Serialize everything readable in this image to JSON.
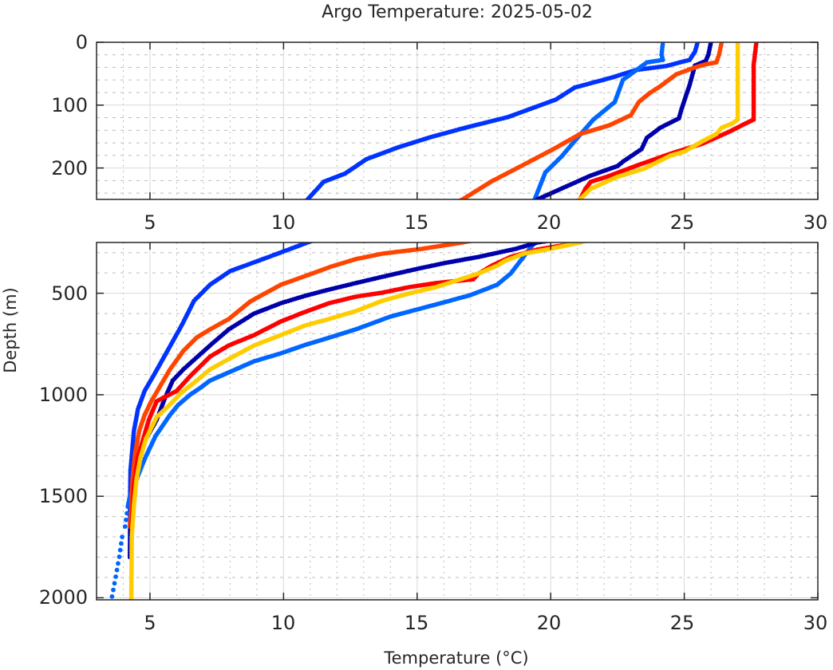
{
  "chart_data": {
    "type": "scatter",
    "title": "Argo Temperature: 2025-05-02",
    "xlabel": "Temperature (°C)",
    "ylabel": "Depth (m)",
    "grid": true,
    "minor_grid": true,
    "y_reversed": true,
    "panels": [
      {
        "name": "upper",
        "xlim": [
          3,
          30
        ],
        "ylim": [
          0,
          250
        ],
        "xticks": [
          5,
          10,
          15,
          20,
          25,
          30
        ],
        "xtick_labels": [
          "5",
          "10",
          "15",
          "20",
          "25",
          "30"
        ],
        "yticks": [
          0,
          100,
          200
        ],
        "ytick_labels": [
          "0",
          "100",
          "200"
        ]
      },
      {
        "name": "lower",
        "xlim": [
          3,
          30
        ],
        "ylim": [
          250,
          2010
        ],
        "xticks": [
          5,
          10,
          15,
          20,
          25,
          30
        ],
        "xtick_labels": [
          "5",
          "10",
          "15",
          "20",
          "25",
          "30"
        ],
        "yticks": [
          500,
          1000,
          1500,
          2000
        ],
        "ytick_labels": [
          "500",
          "1000",
          "1500",
          "2000"
        ]
      }
    ],
    "series": [
      {
        "name": "profile-blue",
        "color": "#0033ff",
        "points": [
          [
            25.5,
            0
          ],
          [
            25.4,
            15
          ],
          [
            25.2,
            28
          ],
          [
            24.3,
            38
          ],
          [
            23.2,
            44
          ],
          [
            22.3,
            56
          ],
          [
            20.9,
            72
          ],
          [
            20.2,
            91
          ],
          [
            18.4,
            119
          ],
          [
            16.8,
            136
          ],
          [
            15.5,
            151
          ],
          [
            14.3,
            167
          ],
          [
            13.1,
            186
          ],
          [
            12.3,
            209
          ],
          [
            11.5,
            222
          ],
          [
            10.9,
            250
          ],
          [
            9.45,
            321
          ],
          [
            8.0,
            391
          ],
          [
            7.25,
            458
          ],
          [
            6.65,
            537
          ],
          [
            6.2,
            655
          ],
          [
            5.7,
            773
          ],
          [
            5.15,
            902
          ],
          [
            4.8,
            981
          ],
          [
            4.55,
            1071
          ],
          [
            4.4,
            1177
          ],
          [
            4.27,
            1374
          ],
          [
            4.25,
            1550
          ],
          [
            4.25,
            1800
          ]
        ]
      },
      {
        "name": "profile-light-blue",
        "color": "#0066ff",
        "points": [
          [
            24.2,
            0
          ],
          [
            24.15,
            20
          ],
          [
            24.2,
            28
          ],
          [
            23.6,
            32
          ],
          [
            22.7,
            60
          ],
          [
            22.4,
            95
          ],
          [
            21.6,
            123
          ],
          [
            21.0,
            152
          ],
          [
            20.4,
            182
          ],
          [
            19.8,
            207
          ],
          [
            19.4,
            250
          ],
          [
            18.8,
            352
          ],
          [
            18.5,
            403
          ],
          [
            18.0,
            458
          ],
          [
            17.0,
            509
          ],
          [
            16.0,
            545
          ],
          [
            15.0,
            580
          ],
          [
            14.0,
            615
          ],
          [
            12.7,
            678
          ],
          [
            11.8,
            715
          ],
          [
            10.8,
            755
          ],
          [
            9.9,
            796
          ],
          [
            8.9,
            835
          ],
          [
            7.95,
            890
          ],
          [
            7.25,
            930
          ],
          [
            6.85,
            969
          ],
          [
            6.5,
            1000
          ],
          [
            6.05,
            1051
          ],
          [
            5.75,
            1099
          ],
          [
            5.2,
            1205
          ],
          [
            4.85,
            1303
          ],
          [
            4.7,
            1350
          ],
          [
            4.25,
            1499
          ],
          [
            4.17,
            1551
          ],
          [
            4.07,
            1649
          ],
          [
            3.96,
            1700
          ],
          [
            3.85,
            1798
          ],
          [
            3.72,
            1896
          ],
          [
            3.58,
            1994
          ]
        ]
      },
      {
        "name": "profile-navy",
        "color": "#0000aa",
        "points": [
          [
            26.0,
            0
          ],
          [
            25.9,
            20
          ],
          [
            25.8,
            30
          ],
          [
            25.4,
            37
          ],
          [
            25.2,
            68
          ],
          [
            24.9,
            106
          ],
          [
            24.8,
            121
          ],
          [
            24.1,
            136
          ],
          [
            23.6,
            152
          ],
          [
            23.4,
            170
          ],
          [
            22.7,
            190
          ],
          [
            22.5,
            197
          ],
          [
            21.5,
            212
          ],
          [
            20.5,
            231
          ],
          [
            19.5,
            250
          ],
          [
            18.7,
            281
          ],
          [
            17.3,
            321
          ],
          [
            16.0,
            352
          ],
          [
            15.0,
            380
          ],
          [
            13.7,
            419
          ],
          [
            12.7,
            450
          ],
          [
            11.7,
            482
          ],
          [
            10.8,
            513
          ],
          [
            9.9,
            549
          ],
          [
            8.9,
            600
          ],
          [
            7.95,
            678
          ],
          [
            7.25,
            757
          ],
          [
            6.25,
            875
          ],
          [
            5.85,
            930
          ],
          [
            5.55,
            1020
          ],
          [
            5.25,
            1124
          ],
          [
            4.85,
            1217
          ],
          [
            4.65,
            1283
          ],
          [
            4.45,
            1374
          ],
          [
            4.35,
            1464
          ],
          [
            4.28,
            1600
          ],
          [
            4.25,
            1800
          ]
        ]
      },
      {
        "name": "profile-orange",
        "color": "#ff4400",
        "points": [
          [
            26.4,
            0
          ],
          [
            26.3,
            20
          ],
          [
            26.2,
            32
          ],
          [
            25.8,
            35
          ],
          [
            25.4,
            40
          ],
          [
            24.7,
            51
          ],
          [
            24.1,
            70
          ],
          [
            23.7,
            81
          ],
          [
            23.3,
            95
          ],
          [
            23.0,
            116
          ],
          [
            22.2,
            132
          ],
          [
            21.1,
            146
          ],
          [
            20.1,
            170
          ],
          [
            18.8,
            199
          ],
          [
            17.8,
            221
          ],
          [
            16.7,
            250
          ],
          [
            15.2,
            281
          ],
          [
            13.7,
            305
          ],
          [
            12.7,
            332
          ],
          [
            11.8,
            368
          ],
          [
            10.9,
            411
          ],
          [
            9.9,
            458
          ],
          [
            8.75,
            541
          ],
          [
            7.95,
            627
          ],
          [
            7.25,
            678
          ],
          [
            6.75,
            718
          ],
          [
            6.25,
            784
          ],
          [
            5.75,
            875
          ],
          [
            5.45,
            942
          ],
          [
            5.05,
            1032
          ],
          [
            4.8,
            1099
          ],
          [
            4.6,
            1177
          ],
          [
            4.45,
            1283
          ],
          [
            4.35,
            1413
          ],
          [
            4.3,
            1570
          ],
          [
            4.25,
            1649
          ]
        ]
      },
      {
        "name": "profile-red",
        "color": "#ff0000",
        "points": [
          [
            27.7,
            0
          ],
          [
            27.6,
            35
          ],
          [
            27.6,
            123
          ],
          [
            27.3,
            129
          ],
          [
            26.7,
            142
          ],
          [
            25.7,
            161
          ],
          [
            24.5,
            177
          ],
          [
            23.3,
            195
          ],
          [
            22.1,
            214
          ],
          [
            21.5,
            222
          ],
          [
            21.3,
            233
          ],
          [
            21.1,
            250
          ],
          [
            19.5,
            285
          ],
          [
            18.5,
            321
          ],
          [
            17.8,
            364
          ],
          [
            17.3,
            403
          ],
          [
            17.1,
            431
          ],
          [
            15.7,
            450
          ],
          [
            14.7,
            470
          ],
          [
            13.7,
            497
          ],
          [
            12.7,
            517
          ],
          [
            11.7,
            549
          ],
          [
            10.8,
            592
          ],
          [
            9.9,
            639
          ],
          [
            8.9,
            706
          ],
          [
            7.95,
            757
          ],
          [
            7.25,
            812
          ],
          [
            6.55,
            902
          ],
          [
            6.0,
            981
          ],
          [
            5.25,
            1032
          ],
          [
            4.95,
            1126
          ],
          [
            4.75,
            1217
          ],
          [
            4.55,
            1307
          ],
          [
            4.4,
            1441
          ],
          [
            4.35,
            1570
          ],
          [
            4.3,
            1650
          ]
        ]
      },
      {
        "name": "profile-yellow",
        "color": "#ffcc00",
        "points": [
          [
            27.0,
            0
          ],
          [
            27.0,
            123
          ],
          [
            26.8,
            129
          ],
          [
            26.4,
            136
          ],
          [
            26.2,
            146
          ],
          [
            25.7,
            157
          ],
          [
            25.0,
            174
          ],
          [
            24.5,
            180
          ],
          [
            23.5,
            201
          ],
          [
            22.5,
            214
          ],
          [
            21.5,
            233
          ],
          [
            21.1,
            250
          ],
          [
            20.0,
            281
          ],
          [
            19.0,
            305
          ],
          [
            18.3,
            340
          ],
          [
            18.0,
            364
          ],
          [
            17.3,
            403
          ],
          [
            15.7,
            470
          ],
          [
            14.7,
            501
          ],
          [
            13.7,
            537
          ],
          [
            12.7,
            588
          ],
          [
            11.7,
            627
          ],
          [
            10.8,
            659
          ],
          [
            9.9,
            706
          ],
          [
            8.9,
            757
          ],
          [
            7.95,
            824
          ],
          [
            7.25,
            875
          ],
          [
            6.75,
            930
          ],
          [
            6.15,
            993
          ],
          [
            5.75,
            1048
          ],
          [
            5.25,
            1110
          ],
          [
            4.85,
            1217
          ],
          [
            4.65,
            1307
          ],
          [
            4.5,
            1413
          ],
          [
            4.4,
            1543
          ],
          [
            4.32,
            1700
          ],
          [
            4.3,
            2005
          ]
        ]
      }
    ]
  }
}
